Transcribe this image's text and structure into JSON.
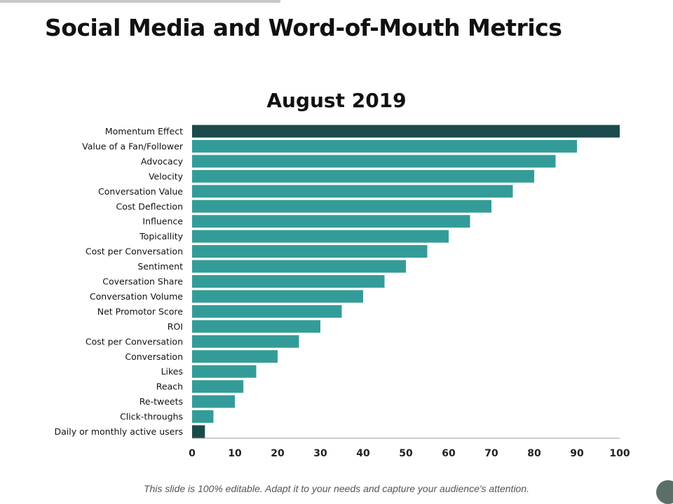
{
  "slide": {
    "title": "Social Media and Word-of-Mouth Metrics",
    "footer": "This slide is 100% editable.  Adapt it to your needs and capture your audience's attention."
  },
  "colors": {
    "bar": "#349c98",
    "bar_highlight": "#1a4a4c",
    "axis": "#999999",
    "text": "#111111"
  },
  "chart_data": {
    "type": "bar",
    "orientation": "horizontal",
    "title": "August 2019",
    "xlim": [
      0,
      100
    ],
    "x_ticks": [
      0,
      10,
      20,
      30,
      40,
      50,
      60,
      70,
      80,
      90,
      100
    ],
    "grid": false,
    "categories": [
      "Momentum Effect",
      "Value of a Fan/Follower",
      "Advocacy",
      "Velocity",
      "Conversation Value",
      "Cost Deflection",
      "Influence",
      "Topicallity",
      "Cost per Conversation",
      "Sentiment",
      "Coversation Share",
      "Conversation Volume",
      "Net Promotor Score",
      "ROI",
      "Cost per Conversation",
      "Conversation",
      "Likes",
      "Reach",
      "Re-tweets",
      "Click-throughs",
      "Daily or monthly active users"
    ],
    "values": [
      100,
      90,
      85,
      80,
      75,
      70,
      65,
      60,
      55,
      50,
      45,
      40,
      35,
      30,
      25,
      20,
      15,
      12,
      10,
      5,
      3
    ],
    "highlighted": [
      "Momentum Effect",
      "Daily or monthly active users"
    ]
  }
}
